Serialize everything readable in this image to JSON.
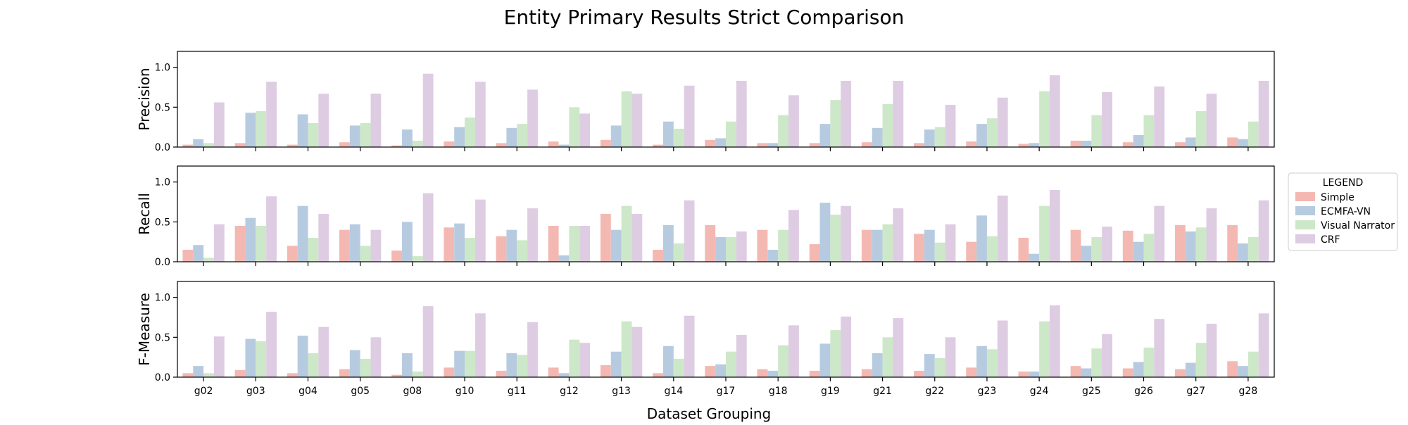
{
  "chart_data": {
    "type": "bar",
    "title": "Entity Primary Results Strict Comparison",
    "xlabel": "Dataset Grouping",
    "categories": [
      "g02",
      "g03",
      "g04",
      "g05",
      "g08",
      "g10",
      "g11",
      "g12",
      "g13",
      "g14",
      "g17",
      "g18",
      "g19",
      "g21",
      "g22",
      "g23",
      "g24",
      "g25",
      "g26",
      "g27",
      "g28"
    ],
    "legend": {
      "title": "LEGEND",
      "placement": "right",
      "entries": [
        "Simple",
        "ECMFA-VN",
        "Visual Narrator",
        "CRF"
      ]
    },
    "colors": {
      "Simple": "#f4b8b2",
      "ECMFA-VN": "#b7cbe0",
      "Visual Narrator": "#cde8c8",
      "CRF": "#decce3"
    },
    "panels": [
      {
        "ylabel": "Precision",
        "ylim": [
          0,
          1.2
        ],
        "yticks": [
          "0.0",
          "0.5",
          "1.0"
        ],
        "series": [
          {
            "name": "Simple",
            "values": [
              0.03,
              0.05,
              0.03,
              0.06,
              0.02,
              0.07,
              0.05,
              0.07,
              0.09,
              0.03,
              0.09,
              0.05,
              0.05,
              0.06,
              0.05,
              0.07,
              0.04,
              0.08,
              0.06,
              0.06,
              0.12
            ]
          },
          {
            "name": "ECMFA-VN",
            "values": [
              0.1,
              0.43,
              0.41,
              0.27,
              0.22,
              0.25,
              0.24,
              0.03,
              0.27,
              0.32,
              0.11,
              0.05,
              0.29,
              0.24,
              0.22,
              0.29,
              0.05,
              0.08,
              0.15,
              0.12,
              0.1
            ]
          },
          {
            "name": "Visual Narrator",
            "values": [
              0.05,
              0.45,
              0.3,
              0.3,
              0.08,
              0.37,
              0.29,
              0.5,
              0.7,
              0.23,
              0.32,
              0.4,
              0.59,
              0.54,
              0.25,
              0.36,
              0.7,
              0.4,
              0.4,
              0.45,
              0.32
            ]
          },
          {
            "name": "CRF",
            "values": [
              0.56,
              0.82,
              0.67,
              0.67,
              0.92,
              0.82,
              0.72,
              0.42,
              0.67,
              0.77,
              0.83,
              0.65,
              0.83,
              0.83,
              0.53,
              0.62,
              0.9,
              0.69,
              0.76,
              0.67,
              0.83
            ]
          }
        ]
      },
      {
        "ylabel": "Recall",
        "ylim": [
          0,
          1.2
        ],
        "yticks": [
          "0.0",
          "0.5",
          "1.0"
        ],
        "series": [
          {
            "name": "Simple",
            "values": [
              0.15,
              0.45,
              0.2,
              0.4,
              0.14,
              0.43,
              0.32,
              0.45,
              0.6,
              0.15,
              0.46,
              0.4,
              0.22,
              0.4,
              0.35,
              0.25,
              0.3,
              0.4,
              0.39,
              0.46,
              0.46
            ]
          },
          {
            "name": "ECMFA-VN",
            "values": [
              0.21,
              0.55,
              0.7,
              0.47,
              0.5,
              0.48,
              0.4,
              0.08,
              0.4,
              0.46,
              0.31,
              0.15,
              0.74,
              0.4,
              0.4,
              0.58,
              0.1,
              0.2,
              0.25,
              0.38,
              0.23
            ]
          },
          {
            "name": "Visual Narrator",
            "values": [
              0.05,
              0.45,
              0.3,
              0.2,
              0.07,
              0.3,
              0.27,
              0.45,
              0.7,
              0.23,
              0.31,
              0.4,
              0.59,
              0.47,
              0.24,
              0.32,
              0.7,
              0.31,
              0.35,
              0.43,
              0.31
            ]
          },
          {
            "name": "CRF",
            "values": [
              0.47,
              0.82,
              0.6,
              0.4,
              0.86,
              0.78,
              0.67,
              0.45,
              0.6,
              0.77,
              0.38,
              0.65,
              0.7,
              0.67,
              0.47,
              0.83,
              0.9,
              0.44,
              0.7,
              0.67,
              0.77
            ]
          }
        ]
      },
      {
        "ylabel": "F-Measure",
        "ylim": [
          0,
          1.2
        ],
        "yticks": [
          "0.0",
          "0.5",
          "1.0"
        ],
        "series": [
          {
            "name": "Simple",
            "values": [
              0.05,
              0.09,
              0.05,
              0.1,
              0.03,
              0.12,
              0.08,
              0.12,
              0.15,
              0.05,
              0.14,
              0.1,
              0.08,
              0.1,
              0.08,
              0.12,
              0.07,
              0.14,
              0.11,
              0.1,
              0.2
            ]
          },
          {
            "name": "ECMFA-VN",
            "values": [
              0.14,
              0.48,
              0.52,
              0.34,
              0.3,
              0.33,
              0.3,
              0.05,
              0.32,
              0.39,
              0.16,
              0.08,
              0.42,
              0.3,
              0.29,
              0.39,
              0.07,
              0.11,
              0.19,
              0.18,
              0.14
            ]
          },
          {
            "name": "Visual Narrator",
            "values": [
              0.05,
              0.45,
              0.3,
              0.23,
              0.07,
              0.33,
              0.28,
              0.47,
              0.7,
              0.23,
              0.32,
              0.4,
              0.59,
              0.5,
              0.24,
              0.35,
              0.7,
              0.36,
              0.37,
              0.43,
              0.32
            ]
          },
          {
            "name": "CRF",
            "values": [
              0.51,
              0.82,
              0.63,
              0.5,
              0.89,
              0.8,
              0.69,
              0.43,
              0.63,
              0.77,
              0.53,
              0.65,
              0.76,
              0.74,
              0.5,
              0.71,
              0.9,
              0.54,
              0.73,
              0.67,
              0.8
            ]
          }
        ]
      }
    ]
  }
}
